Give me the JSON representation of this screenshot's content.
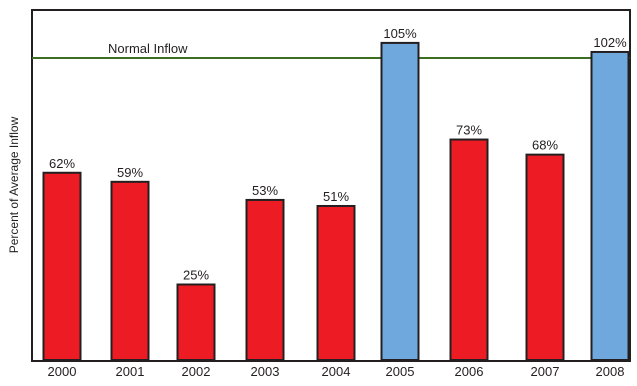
{
  "chart_data": {
    "type": "bar",
    "categories": [
      "2000",
      "2001",
      "2002",
      "2003",
      "2004",
      "2005",
      "2006",
      "2007",
      "2008"
    ],
    "values": [
      62,
      59,
      25,
      53,
      51,
      105,
      73,
      68,
      102
    ],
    "data_labels": [
      "62%",
      "59%",
      "25%",
      "53%",
      "51%",
      "105%",
      "73%",
      "68%",
      "102%"
    ],
    "ylabel": "Percent of Average Inflow",
    "xlabel": "",
    "title": "",
    "ylim": [
      0,
      105
    ],
    "reference_line": {
      "value": 100,
      "label": "Normal Inflow",
      "color": "#3b6e22"
    },
    "colors": {
      "below_normal": "#ed1c24",
      "above_normal": "#6fa8dc",
      "bar_border": "#231f20",
      "axis": "#231f20"
    },
    "grid": false,
    "legend": "none"
  }
}
